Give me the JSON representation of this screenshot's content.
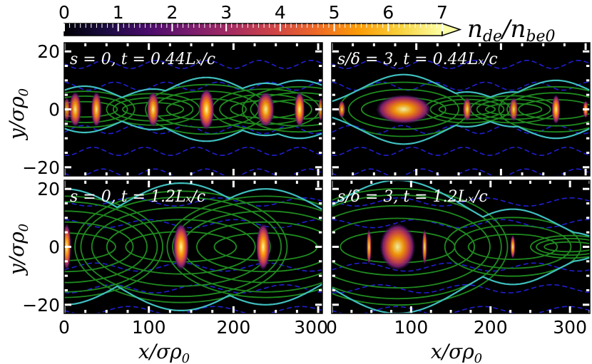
{
  "figure": {
    "colorbar": {
      "label": "n_de/n_be0",
      "ticks": [
        "0",
        "1",
        "2",
        "3",
        "4",
        "5",
        "6",
        "7"
      ],
      "range": [
        0,
        7
      ],
      "extend": "max",
      "colormap": [
        "#000004",
        "#1b0c41",
        "#4a0c6b",
        "#781c6d",
        "#a52c60",
        "#cf4446",
        "#ed6925",
        "#fb9b06",
        "#f7d13d",
        "#fcffa4"
      ]
    },
    "colors": {
      "background": "#000000",
      "separatrix": "#40bfbf",
      "closed_flux": "#1f8a1f",
      "dashed_flux": "#1f1fd0",
      "tick_marks": "#ffffff"
    },
    "x_ticks": [
      "0",
      "100",
      "200",
      "300"
    ],
    "x_tick_values": [
      0,
      100,
      200,
      300
    ],
    "y_ticks": [
      "20",
      "0",
      "−20"
    ],
    "y_tick_values": [
      20,
      0,
      -20
    ],
    "x_label_left": "x/σρ₀",
    "x_label_right": "x/σρ₀",
    "y_label_top": "y/σρ₀",
    "y_label_bottom": "y/σρ₀"
  },
  "chart_data": [
    {
      "type": "heatmap",
      "label": "s = 0, t = 0.44Lₓ/c",
      "xlim": [
        0,
        305
      ],
      "ylim": [
        -23,
        23
      ],
      "islands": [
        {
          "x": 3,
          "w": 4,
          "h": 4,
          "peak": 4
        },
        {
          "x": 13,
          "w": 7,
          "h": 6,
          "peak": 6
        },
        {
          "x": 38,
          "w": 6,
          "h": 6,
          "peak": 6
        },
        {
          "x": 105,
          "w": 7,
          "h": 6,
          "peak": 6
        },
        {
          "x": 168,
          "w": 9,
          "h": 7,
          "peak": 7
        },
        {
          "x": 238,
          "w": 10,
          "h": 6,
          "peak": 6
        },
        {
          "x": 278,
          "w": 6,
          "h": 6,
          "peak": 7
        },
        {
          "x": 303,
          "w": 3,
          "h": 4,
          "peak": 4
        }
      ],
      "separatrix_o_points": [
        24,
        105,
        168,
        238,
        278
      ],
      "separatrix_x_points": [
        68,
        135,
        205,
        258,
        292
      ],
      "separatrix_widths": [
        8,
        7,
        11,
        9,
        10
      ]
    },
    {
      "type": "heatmap",
      "label": "s/δ = 3, t = 0.44Lₓ/c",
      "xlim": [
        0,
        305
      ],
      "ylim": [
        -23,
        23
      ],
      "islands": [
        {
          "x": 12,
          "w": 4,
          "h": 3,
          "peak": 5
        },
        {
          "x": 85,
          "w": 32,
          "h": 5,
          "peak": 6
        },
        {
          "x": 160,
          "w": 5,
          "h": 4,
          "peak": 5
        },
        {
          "x": 215,
          "w": 5,
          "h": 4,
          "peak": 5
        },
        {
          "x": 265,
          "w": 5,
          "h": 5,
          "peak": 7
        },
        {
          "x": 300,
          "w": 3,
          "h": 3,
          "peak": 6
        }
      ],
      "separatrix_o_points": [
        85,
        160,
        215,
        265
      ],
      "separatrix_x_points": [
        140,
        185,
        240,
        290
      ],
      "separatrix_widths": [
        12,
        6,
        6,
        10
      ]
    },
    {
      "type": "heatmap",
      "label": "s = 0, t = 1.2Lₓ/c",
      "xlim": [
        0,
        305
      ],
      "ylim": [
        -23,
        23
      ],
      "islands": [
        {
          "x": 3,
          "w": 5,
          "h": 8,
          "peak": 7
        },
        {
          "x": 138,
          "w": 9,
          "h": 8,
          "peak": 7
        },
        {
          "x": 235,
          "w": 8,
          "h": 8,
          "peak": 7
        }
      ],
      "separatrix_o_points": [
        0,
        138,
        238
      ],
      "separatrix_x_points": [
        70,
        188,
        290
      ],
      "separatrix_widths": [
        20,
        22,
        20
      ]
    },
    {
      "type": "heatmap",
      "label": "s/δ = 3, t = 1.2Lₓ/c",
      "xlim": [
        0,
        325
      ],
      "ylim": [
        -23,
        23
      ],
      "islands": [
        {
          "x": 83,
          "w": 22,
          "h": 8,
          "peak": 6
        },
        {
          "x": 47,
          "w": 3,
          "h": 6,
          "peak": 6
        },
        {
          "x": 117,
          "w": 3,
          "h": 6,
          "peak": 6
        },
        {
          "x": 228,
          "w": 3,
          "h": 4,
          "peak": 7
        }
      ],
      "separatrix_o_points": [
        83,
        228,
        300
      ],
      "separatrix_x_points": [
        170,
        275
      ],
      "separatrix_widths": [
        23,
        13,
        5
      ]
    }
  ]
}
